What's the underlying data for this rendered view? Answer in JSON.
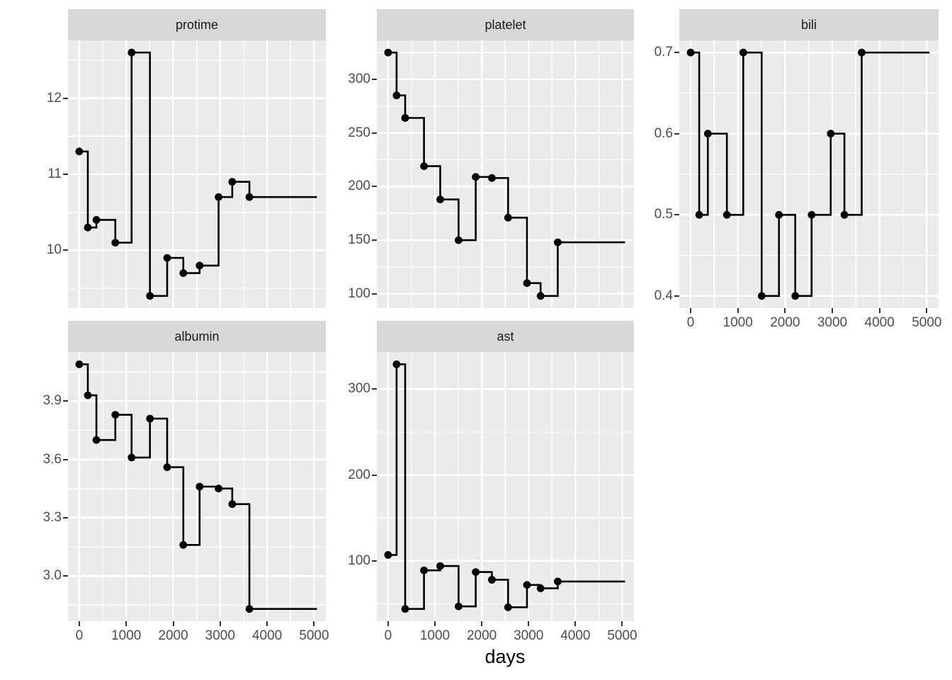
{
  "figure": {
    "background": "#FFFFFF",
    "panel_bg": "#EBEBEB",
    "strip_bg": "#D8D8D8",
    "strip_text_color": "#1A1A1A",
    "grid_color": "#FFFFFF",
    "axis_text_color": "#4D4D4D",
    "tick_color": "#333333",
    "line_color": "#000000",
    "point_color": "#000000"
  },
  "chart_data": {
    "type": "line",
    "step": "hv",
    "title": "",
    "xlabel": "days",
    "legend": "none",
    "grid": true,
    "x": [
      0,
      182,
      365,
      768,
      1114,
      1505,
      1871,
      2216,
      2562,
      2967,
      3257,
      3622
    ],
    "x_end": 5060,
    "xlim": [
      -240,
      5250
    ],
    "x_ticks_major": [
      0,
      1000,
      2000,
      3000,
      4000,
      5000
    ],
    "x_tick_labels": [
      "0",
      "1000",
      "2000",
      "3000",
      "4000",
      "5000"
    ],
    "x_ticks_minor": [
      500,
      1500,
      2500,
      3500,
      4500
    ],
    "facets": [
      {
        "name": "protime",
        "row": 0,
        "col": 0,
        "show_xaxis": false,
        "values": [
          11.3,
          10.3,
          10.4,
          10.1,
          12.6,
          9.4,
          9.9,
          9.7,
          9.8,
          10.7,
          10.9,
          10.7
        ],
        "ylim": [
          9.24,
          12.76
        ],
        "yticks": [
          {
            "value": 10,
            "label": "10"
          },
          {
            "value": 11,
            "label": "11"
          },
          {
            "value": 12,
            "label": "12"
          }
        ],
        "yticks_minor": [
          9.5,
          10.5,
          11.5,
          12.5
        ]
      },
      {
        "name": "platelet",
        "row": 0,
        "col": 1,
        "show_xaxis": false,
        "values": [
          325,
          285,
          264,
          219,
          188,
          150,
          209,
          208,
          171,
          110,
          98,
          148
        ],
        "ylim": [
          86.65,
          336.35
        ],
        "yticks": [
          {
            "value": 100,
            "label": "100"
          },
          {
            "value": 150,
            "label": "150"
          },
          {
            "value": 200,
            "label": "200"
          },
          {
            "value": 250,
            "label": "250"
          },
          {
            "value": 300,
            "label": "300"
          }
        ],
        "yticks_minor": [
          125,
          175,
          225,
          275,
          325
        ]
      },
      {
        "name": "bili",
        "row": 0,
        "col": 2,
        "show_xaxis": true,
        "values": [
          0.7,
          0.5,
          0.6,
          0.5,
          0.7,
          0.4,
          0.5,
          0.4,
          0.5,
          0.6,
          0.5,
          0.7
        ],
        "ylim": [
          0.385,
          0.715
        ],
        "yticks": [
          {
            "value": 0.4,
            "label": "0.4"
          },
          {
            "value": 0.5,
            "label": "0.5"
          },
          {
            "value": 0.6,
            "label": "0.6"
          },
          {
            "value": 0.7,
            "label": "0.7"
          }
        ],
        "yticks_minor": [
          0.45,
          0.55,
          0.65
        ]
      },
      {
        "name": "albumin",
        "row": 1,
        "col": 0,
        "show_xaxis": true,
        "values": [
          4.09,
          3.93,
          3.7,
          3.83,
          3.61,
          3.81,
          3.56,
          3.16,
          3.46,
          3.45,
          3.37,
          2.83
        ],
        "ylim": [
          2.767,
          4.153
        ],
        "yticks": [
          {
            "value": 3.0,
            "label": "3.0"
          },
          {
            "value": 3.3,
            "label": "3.3"
          },
          {
            "value": 3.6,
            "label": "3.6"
          },
          {
            "value": 3.9,
            "label": "3.9"
          }
        ],
        "yticks_minor": [
          2.85,
          3.15,
          3.45,
          3.75,
          4.05
        ]
      },
      {
        "name": "ast",
        "row": 1,
        "col": 1,
        "show_xaxis": true,
        "show_xlabel": true,
        "values": [
          107,
          329,
          44,
          89,
          94,
          47,
          87,
          78,
          46,
          72,
          68,
          76
        ],
        "ylim": [
          29.75,
          343.25
        ],
        "yticks": [
          {
            "value": 100,
            "label": "100"
          },
          {
            "value": 200,
            "label": "200"
          },
          {
            "value": 300,
            "label": "300"
          }
        ],
        "yticks_minor": [
          50,
          150,
          250
        ]
      }
    ]
  }
}
